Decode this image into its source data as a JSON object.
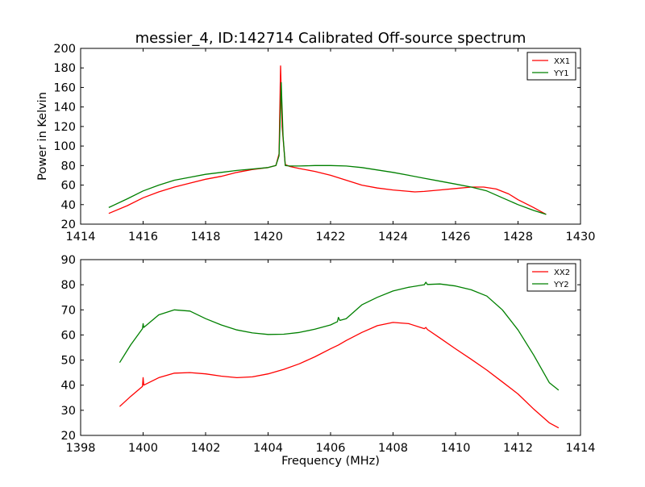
{
  "chart_data": [
    {
      "type": "line",
      "title": "messier_4, ID:142714 Calibrated Off-source spectrum",
      "xlabel": "",
      "ylabel": "Power in Kelvin",
      "xlim": [
        1414,
        1430
      ],
      "ylim": [
        20,
        200
      ],
      "xticks": [
        1414,
        1416,
        1418,
        1420,
        1422,
        1424,
        1426,
        1428,
        1430
      ],
      "yticks": [
        20,
        40,
        60,
        80,
        100,
        120,
        140,
        160,
        180,
        200
      ],
      "grid": false,
      "legend_position": "top-right",
      "series": [
        {
          "name": "XX1",
          "color": "#ff0000",
          "x": [
            1414.9,
            1415.5,
            1416,
            1416.5,
            1417,
            1417.5,
            1418,
            1418.5,
            1419,
            1419.5,
            1420,
            1420.25,
            1420.35,
            1420.4,
            1420.45,
            1420.55,
            1420.7,
            1421,
            1421.5,
            1422,
            1422.5,
            1423,
            1423.5,
            1424,
            1424.7,
            1425,
            1425.5,
            1426,
            1426.5,
            1426.9,
            1427.3,
            1427.7,
            1428,
            1428.5,
            1428.9
          ],
          "y": [
            31,
            39,
            47,
            53,
            58,
            62,
            66,
            69,
            73,
            76,
            78,
            80,
            92,
            182,
            120,
            81,
            79,
            77,
            74,
            70,
            65,
            60,
            57,
            55,
            53,
            53.5,
            55,
            56.5,
            58,
            58,
            56,
            51,
            45,
            37,
            30
          ]
        },
        {
          "name": "YY1",
          "color": "#008000",
          "x": [
            1414.9,
            1415.5,
            1416,
            1416.5,
            1417,
            1417.5,
            1418,
            1418.5,
            1419,
            1419.5,
            1420,
            1420.25,
            1420.35,
            1420.42,
            1420.48,
            1420.55,
            1420.7,
            1421,
            1421.5,
            1422,
            1422.5,
            1423,
            1423.5,
            1424,
            1424.5,
            1425,
            1425.5,
            1426,
            1426.5,
            1427,
            1427.5,
            1428,
            1428.5,
            1428.9
          ],
          "y": [
            37,
            46,
            54,
            60,
            65,
            68,
            71,
            73,
            75,
            76.5,
            78,
            80,
            90,
            165,
            110,
            80,
            79.5,
            79.5,
            80,
            80,
            79.5,
            78,
            75.5,
            73,
            70,
            67,
            64,
            61,
            58,
            54,
            47,
            40,
            34,
            30
          ]
        }
      ]
    },
    {
      "type": "line",
      "title": "",
      "xlabel": "Frequency (MHz)",
      "ylabel": "",
      "xlim": [
        1398,
        1414
      ],
      "ylim": [
        20,
        90
      ],
      "xticks": [
        1398,
        1400,
        1402,
        1404,
        1406,
        1408,
        1410,
        1412,
        1414
      ],
      "yticks": [
        20,
        30,
        40,
        50,
        60,
        70,
        80,
        90
      ],
      "grid": false,
      "legend_position": "top-right",
      "series": [
        {
          "name": "XX2",
          "color": "#ff0000",
          "x": [
            1399.25,
            1399.6,
            1399.98,
            1400,
            1400.02,
            1400.5,
            1401,
            1401.5,
            1402,
            1402.5,
            1403,
            1403.5,
            1404,
            1404.5,
            1405,
            1405.5,
            1406,
            1406.25,
            1406.5,
            1407,
            1407.5,
            1408,
            1408.5,
            1409,
            1409.05,
            1409.1,
            1409.5,
            1410,
            1410.5,
            1411,
            1411.5,
            1412,
            1412.5,
            1413,
            1413.3
          ],
          "y": [
            31.5,
            35.5,
            39.5,
            43,
            40,
            43,
            44.8,
            45,
            44.5,
            43.6,
            43,
            43.3,
            44.5,
            46.3,
            48.5,
            51.3,
            54.5,
            56,
            57.8,
            61,
            63.7,
            65,
            64.5,
            62.5,
            63,
            62.2,
            58.8,
            54.5,
            50.3,
            46,
            41.3,
            36.5,
            30.5,
            25,
            23
          ]
        },
        {
          "name": "YY2",
          "color": "#008000",
          "x": [
            1399.25,
            1399.6,
            1399.98,
            1400,
            1400.02,
            1400.5,
            1401,
            1401.5,
            1402,
            1402.5,
            1403,
            1403.5,
            1404,
            1404.5,
            1405,
            1405.5,
            1406,
            1406.22,
            1406.25,
            1406.3,
            1406.5,
            1407,
            1407.5,
            1408,
            1408.5,
            1409,
            1409.05,
            1409.1,
            1409.5,
            1410,
            1410.5,
            1411,
            1411.5,
            1412,
            1412.5,
            1413,
            1413.3
          ],
          "y": [
            49,
            56,
            62.5,
            64.5,
            63,
            68,
            70,
            69.5,
            66.5,
            64,
            62,
            60.8,
            60.2,
            60.3,
            61,
            62.3,
            64,
            65.3,
            67,
            65.8,
            66.5,
            72,
            75,
            77.5,
            79,
            80,
            81,
            80.1,
            80.3,
            79.5,
            78,
            75.5,
            70,
            62,
            52,
            41,
            38
          ]
        }
      ]
    }
  ]
}
